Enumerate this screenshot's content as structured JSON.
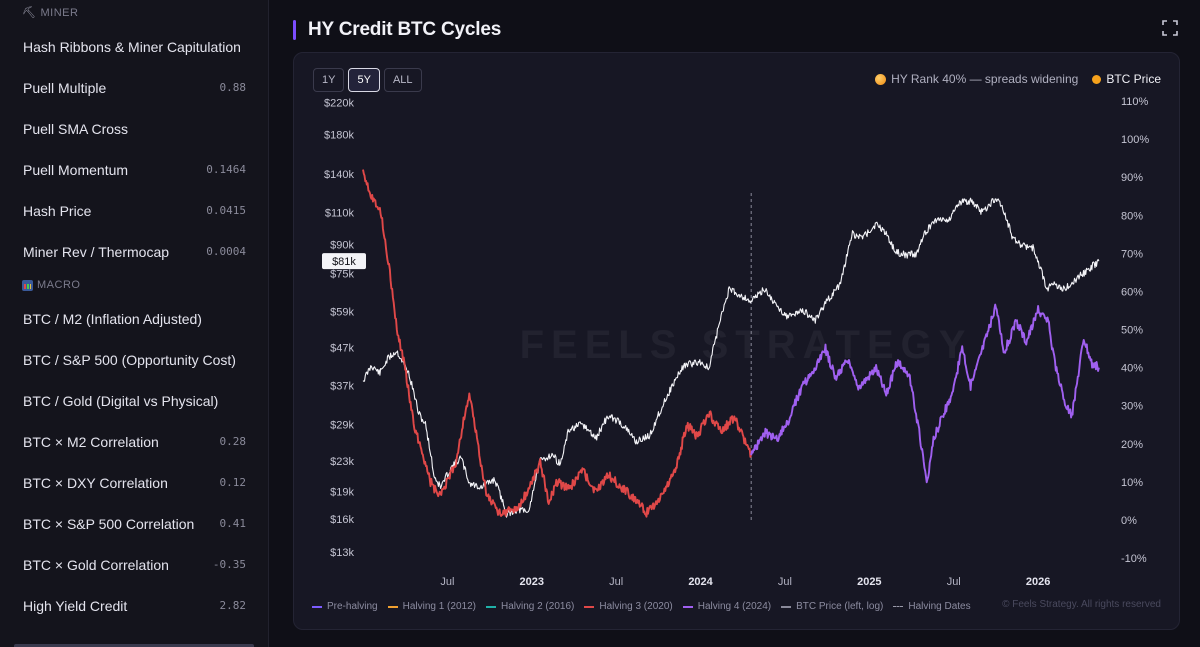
{
  "sidebar": {
    "miner_header": "MINER",
    "miner_items": [
      {
        "label": "Hash Ribbons & Miner Capitulation",
        "value": ""
      },
      {
        "label": "Puell Multiple",
        "value": "0.88"
      },
      {
        "label": "Puell SMA Cross",
        "value": ""
      },
      {
        "label": "Puell Momentum",
        "value": "0.1464"
      },
      {
        "label": "Hash Price",
        "value": "0.0415"
      },
      {
        "label": "Miner Rev / Thermocap",
        "value": "0.0004"
      }
    ],
    "macro_header": "MACRO",
    "macro_items": [
      {
        "label": "BTC / M2 (Inflation Adjusted)",
        "value": ""
      },
      {
        "label": "BTC / S&P 500 (Opportunity Cost)",
        "value": ""
      },
      {
        "label": "BTC / Gold (Digital vs Physical)",
        "value": ""
      },
      {
        "label": "BTC × M2 Correlation",
        "value": "0.28"
      },
      {
        "label": "BTC × DXY Correlation",
        "value": "0.12"
      },
      {
        "label": "BTC × S&P 500 Correlation",
        "value": "0.41"
      },
      {
        "label": "BTC × Gold Correlation",
        "value": "-0.35"
      },
      {
        "label": "High Yield Credit",
        "value": "2.82"
      }
    ]
  },
  "header": {
    "title": "HY Credit BTC Cycles"
  },
  "range_buttons": [
    {
      "label": "1Y",
      "active": false
    },
    {
      "label": "5Y",
      "active": true
    },
    {
      "label": "ALL",
      "active": false
    }
  ],
  "legend_top": {
    "hy_label": "HY Rank 40% — spreads widening",
    "btc_label": "BTC Price"
  },
  "legend_bottom": [
    {
      "label": "Pre-halving",
      "color": "#7c5cff",
      "style": "line"
    },
    {
      "label": "Halving 1 (2012)",
      "color": "#f0a030",
      "style": "line"
    },
    {
      "label": "Halving 2 (2016)",
      "color": "#20b0a8",
      "style": "line"
    },
    {
      "label": "Halving 3 (2020)",
      "color": "#e04848",
      "style": "line"
    },
    {
      "label": "Halving 4 (2024)",
      "color": "#a060f0",
      "style": "line"
    },
    {
      "label": "BTC Price (left, log)",
      "color": "#8a8a9a",
      "style": "line"
    },
    {
      "label": "Halving Dates",
      "color": "#9a9aaa",
      "style": "dash"
    }
  ],
  "watermark": "FEELS STRATEGY",
  "copyright": "© Feels Strategy. All rights reserved",
  "chart_data": {
    "type": "line",
    "y_left": {
      "scale": "log",
      "ticks": [
        "$220k",
        "$180k",
        "$140k",
        "$110k",
        "$90k",
        "$75k",
        "$59k",
        "$47k",
        "$37k",
        "$29k",
        "$23k",
        "$19k",
        "$16k",
        "$13k"
      ],
      "current_label": "$81k"
    },
    "y_right": {
      "ticks": [
        "110%",
        "100%",
        "90%",
        "80%",
        "70%",
        "60%",
        "50%",
        "40%",
        "30%",
        "20%",
        "10%",
        "0%",
        "-10%"
      ],
      "range": [
        -10,
        110
      ]
    },
    "x_ticks": [
      {
        "label": "Jul",
        "t": 2022.5,
        "bold": false
      },
      {
        "label": "2023",
        "t": 2023.0,
        "bold": true
      },
      {
        "label": "Jul",
        "t": 2023.5,
        "bold": false
      },
      {
        "label": "2024",
        "t": 2024.0,
        "bold": true
      },
      {
        "label": "Jul",
        "t": 2024.5,
        "bold": false
      },
      {
        "label": "2025",
        "t": 2025.0,
        "bold": true
      },
      {
        "label": "Jul",
        "t": 2025.5,
        "bold": false
      },
      {
        "label": "2026",
        "t": 2026.0,
        "bold": true
      }
    ],
    "x_range": [
      2022.0,
      2026.42
    ],
    "halving_date": 2024.3,
    "btc_price": {
      "name": "BTC Price",
      "points": [
        [
          2022.0,
          38000
        ],
        [
          2022.05,
          42000
        ],
        [
          2022.1,
          40000
        ],
        [
          2022.15,
          44000
        ],
        [
          2022.2,
          46000
        ],
        [
          2022.27,
          40000
        ],
        [
          2022.33,
          31000
        ],
        [
          2022.37,
          29000
        ],
        [
          2022.42,
          21000
        ],
        [
          2022.46,
          19500
        ],
        [
          2022.52,
          22000
        ],
        [
          2022.58,
          23500
        ],
        [
          2022.63,
          20000
        ],
        [
          2022.7,
          19500
        ],
        [
          2022.78,
          20500
        ],
        [
          2022.85,
          16500
        ],
        [
          2022.92,
          17000
        ],
        [
          2022.98,
          16600
        ],
        [
          2023.05,
          23000
        ],
        [
          2023.12,
          24000
        ],
        [
          2023.17,
          22500
        ],
        [
          2023.22,
          28000
        ],
        [
          2023.3,
          29000
        ],
        [
          2023.38,
          26500
        ],
        [
          2023.45,
          30500
        ],
        [
          2023.52,
          29500
        ],
        [
          2023.62,
          26000
        ],
        [
          2023.7,
          27000
        ],
        [
          2023.8,
          34500
        ],
        [
          2023.9,
          42000
        ],
        [
          2024.0,
          43000
        ],
        [
          2024.05,
          41000
        ],
        [
          2024.1,
          52000
        ],
        [
          2024.17,
          68000
        ],
        [
          2024.22,
          66000
        ],
        [
          2024.3,
          63000
        ],
        [
          2024.38,
          68000
        ],
        [
          2024.45,
          61000
        ],
        [
          2024.52,
          57000
        ],
        [
          2024.6,
          59500
        ],
        [
          2024.68,
          56000
        ],
        [
          2024.75,
          63000
        ],
        [
          2024.83,
          70000
        ],
        [
          2024.9,
          96000
        ],
        [
          2024.96,
          94000
        ],
        [
          2025.04,
          102000
        ],
        [
          2025.1,
          97000
        ],
        [
          2025.15,
          86000
        ],
        [
          2025.22,
          84000
        ],
        [
          2025.28,
          85000
        ],
        [
          2025.33,
          97000
        ],
        [
          2025.4,
          106000
        ],
        [
          2025.47,
          105000
        ],
        [
          2025.53,
          117000
        ],
        [
          2025.6,
          118000
        ],
        [
          2025.67,
          110000
        ],
        [
          2025.75,
          121000
        ],
        [
          2025.8,
          110000
        ],
        [
          2025.85,
          93000
        ],
        [
          2025.9,
          90000
        ],
        [
          2025.97,
          88000
        ],
        [
          2026.02,
          76000
        ],
        [
          2026.05,
          68000
        ],
        [
          2026.1,
          70000
        ],
        [
          2026.16,
          68000
        ],
        [
          2026.22,
          72000
        ],
        [
          2026.3,
          77000
        ],
        [
          2026.36,
          81000
        ]
      ]
    },
    "hy_rank": [
      {
        "name": "Halving 3 (2020)",
        "color": "#e04848",
        "points": [
          [
            2022.0,
            92
          ],
          [
            2022.05,
            85
          ],
          [
            2022.1,
            82
          ],
          [
            2022.15,
            68
          ],
          [
            2022.2,
            50
          ],
          [
            2022.25,
            40
          ],
          [
            2022.3,
            25
          ],
          [
            2022.35,
            18
          ],
          [
            2022.4,
            10
          ],
          [
            2022.45,
            6
          ],
          [
            2022.5,
            10
          ],
          [
            2022.55,
            15
          ],
          [
            2022.6,
            27
          ],
          [
            2022.63,
            33
          ],
          [
            2022.68,
            20
          ],
          [
            2022.73,
            7
          ],
          [
            2022.8,
            2
          ],
          [
            2022.85,
            2
          ],
          [
            2022.92,
            3
          ],
          [
            2022.98,
            8
          ],
          [
            2023.05,
            15
          ],
          [
            2023.1,
            5
          ],
          [
            2023.15,
            10
          ],
          [
            2023.22,
            8
          ],
          [
            2023.3,
            13
          ],
          [
            2023.38,
            7
          ],
          [
            2023.45,
            12
          ],
          [
            2023.52,
            9
          ],
          [
            2023.6,
            6
          ],
          [
            2023.68,
            2
          ],
          [
            2023.75,
            5
          ],
          [
            2023.85,
            13
          ],
          [
            2023.92,
            25
          ],
          [
            2023.98,
            22
          ],
          [
            2024.05,
            28
          ],
          [
            2024.12,
            23
          ],
          [
            2024.2,
            27
          ],
          [
            2024.25,
            22
          ],
          [
            2024.3,
            17
          ]
        ]
      },
      {
        "name": "Halving 4 (2024)",
        "color": "#a060f0",
        "points": [
          [
            2024.3,
            17
          ],
          [
            2024.38,
            23
          ],
          [
            2024.45,
            21
          ],
          [
            2024.52,
            26
          ],
          [
            2024.6,
            35
          ],
          [
            2024.67,
            39
          ],
          [
            2024.74,
            45
          ],
          [
            2024.8,
            37
          ],
          [
            2024.87,
            42
          ],
          [
            2024.93,
            35
          ],
          [
            2024.98,
            37
          ],
          [
            2025.04,
            40
          ],
          [
            2025.1,
            33
          ],
          [
            2025.17,
            42
          ],
          [
            2025.24,
            37
          ],
          [
            2025.3,
            22
          ],
          [
            2025.34,
            9
          ],
          [
            2025.38,
            21
          ],
          [
            2025.43,
            27
          ],
          [
            2025.5,
            34
          ],
          [
            2025.55,
            46
          ],
          [
            2025.6,
            35
          ],
          [
            2025.67,
            45
          ],
          [
            2025.75,
            56
          ],
          [
            2025.8,
            44
          ],
          [
            2025.87,
            52
          ],
          [
            2025.93,
            47
          ],
          [
            2026.0,
            55
          ],
          [
            2026.06,
            52
          ],
          [
            2026.1,
            41
          ],
          [
            2026.15,
            32
          ],
          [
            2026.2,
            27
          ],
          [
            2026.27,
            48
          ],
          [
            2026.32,
            41
          ],
          [
            2026.36,
            40
          ]
        ]
      }
    ]
  }
}
